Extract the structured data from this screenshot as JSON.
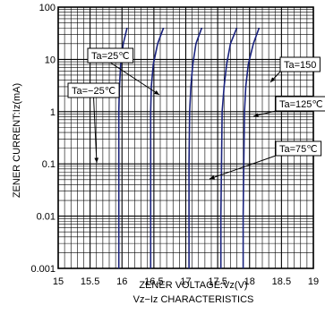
{
  "chart_data": {
    "type": "line",
    "title": "",
    "caption": "Vz−Iz CHARACTERISTICS",
    "xlabel": "ZENER VOLTAGE:Vz(V)",
    "ylabel": "ZENER CURRENT:Iz(mA)",
    "xlim": [
      15,
      19
    ],
    "ylim": [
      0.001,
      100
    ],
    "y_scale": "log",
    "x_ticks": [
      "15",
      "15.5",
      "16",
      "16.5",
      "17",
      "17.5",
      "18",
      "18.5",
      "19"
    ],
    "y_ticks": [
      "0.001",
      "0.01",
      "0.1",
      "1",
      "10",
      "100"
    ],
    "grid": true,
    "colors": {
      "curve": "#1a237e",
      "grid": "#000000",
      "background": "#ffffff"
    },
    "series": [
      {
        "name": "Ta=−25℃",
        "points": [
          [
            15.95,
            0.001
          ],
          [
            15.95,
            0.01
          ],
          [
            15.95,
            0.1
          ],
          [
            15.95,
            1
          ],
          [
            15.96,
            3
          ],
          [
            15.98,
            8
          ],
          [
            16.02,
            20
          ],
          [
            16.08,
            40
          ]
        ]
      },
      {
        "name": "Ta=25℃",
        "points": [
          [
            16.45,
            0.001
          ],
          [
            16.45,
            0.01
          ],
          [
            16.45,
            0.1
          ],
          [
            16.45,
            1
          ],
          [
            16.46,
            3
          ],
          [
            16.49,
            8
          ],
          [
            16.56,
            20
          ],
          [
            16.65,
            40
          ]
        ]
      },
      {
        "name": "Ta=75℃",
        "points": [
          [
            17.05,
            0.001
          ],
          [
            17.05,
            0.01
          ],
          [
            17.05,
            0.1
          ],
          [
            17.06,
            1
          ],
          [
            17.08,
            3
          ],
          [
            17.11,
            8
          ],
          [
            17.16,
            20
          ],
          [
            17.25,
            40
          ]
        ]
      },
      {
        "name": "Ta=125℃",
        "points": [
          [
            17.55,
            0.001
          ],
          [
            17.55,
            0.01
          ],
          [
            17.56,
            0.1
          ],
          [
            17.57,
            1
          ],
          [
            17.6,
            3
          ],
          [
            17.64,
            8
          ],
          [
            17.7,
            20
          ],
          [
            17.8,
            40
          ]
        ]
      },
      {
        "name": "Ta=150",
        "points": [
          [
            17.9,
            0.001
          ],
          [
            17.9,
            0.01
          ],
          [
            17.91,
            0.1
          ],
          [
            17.92,
            1
          ],
          [
            17.94,
            3
          ],
          [
            17.98,
            8
          ],
          [
            18.06,
            20
          ],
          [
            18.15,
            40
          ]
        ]
      }
    ],
    "annotations": [
      {
        "text": "Ta=25℃",
        "series": "Ta=25℃"
      },
      {
        "text": "Ta=−25℃",
        "series": "Ta=−25℃"
      },
      {
        "text": "Ta=150",
        "series": "Ta=150"
      },
      {
        "text": "Ta=125℃",
        "series": "Ta=125℃"
      },
      {
        "text": "Ta=75℃",
        "series": "Ta=75℃"
      }
    ]
  }
}
